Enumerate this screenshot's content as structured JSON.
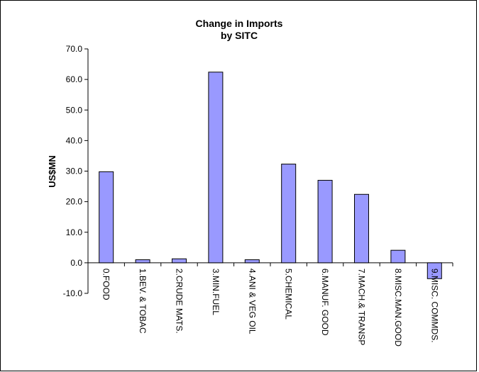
{
  "chart_data": {
    "type": "bar",
    "title": "Change in Imports",
    "subtitle": "by SITC",
    "xlabel": "",
    "ylabel": "US$MN",
    "ylim": [
      -10,
      70
    ],
    "yticks": [
      -10,
      0,
      10,
      20,
      30,
      40,
      50,
      60,
      70
    ],
    "ytick_labels": [
      "-10.0",
      "0.0",
      "10.0",
      "20.0",
      "30.0",
      "40.0",
      "50.0",
      "60.0",
      "70.0"
    ],
    "grid": false,
    "legend": "none",
    "bar_color": "#9999ff",
    "categories": [
      "0.FOOD",
      "1.BEV. & TOBAC",
      "2.CRUDE MATS.",
      "3.MIN.FUEL",
      "4.ANI & VEG OIL",
      "5.CHEMICAL",
      "6.MANUF. GOOD",
      "7.MACH.& TRANSP",
      "8.MISC.MAN.GOOD",
      "9.MISC. COMMDS."
    ],
    "values": [
      29.8,
      1.0,
      1.3,
      62.4,
      1.0,
      32.3,
      27.0,
      22.4,
      4.1,
      -5.2
    ]
  }
}
